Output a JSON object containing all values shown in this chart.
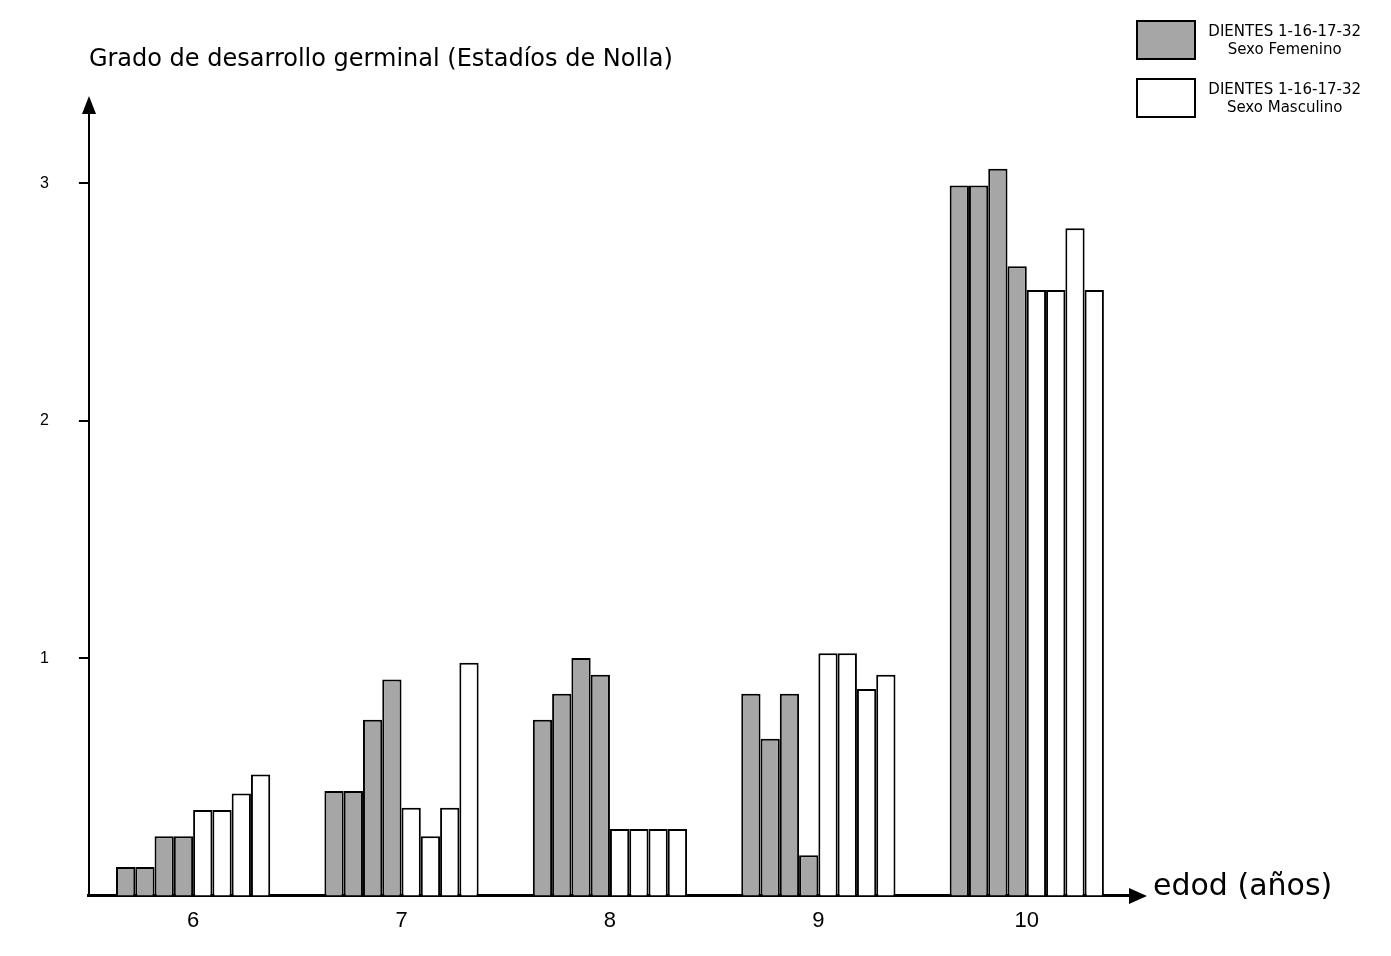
{
  "chart_data": {
    "type": "bar",
    "ylabel": "Grado de desarrollo germinal (Estadíos de Nolla)",
    "xlabel": "edod (años)",
    "categories": [
      "6",
      "7",
      "8",
      "9",
      "10"
    ],
    "series": [
      {
        "name": "DIENTES 1-16-17-32\nSexo Femenino",
        "color": "#a6a6a6",
        "values": [
          0.12,
          0.44,
          0.74,
          0.85,
          2.99
        ]
      },
      {
        "color": "#a6a6a6",
        "values": [
          0.12,
          0.44,
          0.85,
          0.66,
          2.99
        ]
      },
      {
        "color": "#a6a6a6",
        "values": [
          0.25,
          0.74,
          1.0,
          0.85,
          3.06
        ]
      },
      {
        "color": "#a6a6a6",
        "values": [
          0.25,
          0.91,
          0.93,
          0.17,
          2.65
        ]
      },
      {
        "name": "DIENTES 1-16-17-32\nSexo Masculino",
        "color": "#ffffff",
        "values": [
          0.36,
          0.37,
          0.28,
          1.02,
          2.55
        ]
      },
      {
        "color": "#ffffff",
        "values": [
          0.36,
          0.25,
          0.28,
          1.02,
          2.55
        ]
      },
      {
        "color": "#ffffff",
        "values": [
          0.43,
          0.37,
          0.28,
          0.87,
          2.81
        ]
      },
      {
        "color": "#ffffff",
        "values": [
          0.51,
          0.98,
          0.28,
          0.93,
          2.55
        ]
      }
    ],
    "ylim": [
      0,
      3.35
    ],
    "yticks": [
      1,
      2,
      3
    ],
    "grid": false,
    "legend": "top right"
  }
}
